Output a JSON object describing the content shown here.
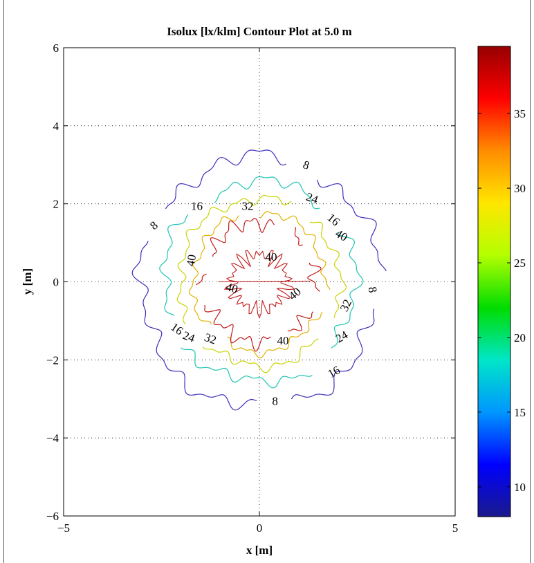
{
  "chart_data": {
    "type": "contour",
    "title": "Isolux [lx/klm] Contour Plot at 5.0 m",
    "xlabel": "x [m]",
    "ylabel": "y [m]",
    "xlim": [
      -5,
      5
    ],
    "ylim": [
      -6,
      6
    ],
    "xticks": [
      -5,
      0,
      5
    ],
    "yticks": [
      -6,
      -4,
      -2,
      0,
      2,
      4,
      6
    ],
    "xtick_labels": [
      "−5",
      "0",
      "5"
    ],
    "ytick_labels": [
      "−6",
      "−4",
      "−2",
      "0",
      "2",
      "4",
      "6"
    ],
    "grid": "dotted",
    "levels": [
      {
        "value": 8,
        "color": "#3a2db8",
        "radius": 3.05
      },
      {
        "value": 16,
        "color": "#1cc4b2",
        "radius": 2.45
      },
      {
        "value": 24,
        "color": "#c8d400",
        "radius": 2.05
      },
      {
        "value": 32,
        "color": "#e1b000",
        "radius": 1.7
      },
      {
        "value": 40,
        "color": "#c01818",
        "radius": 1.45
      }
    ],
    "contour_labels": [
      {
        "text": "8",
        "x": 1.2,
        "y": 3.0,
        "rotate": 20
      },
      {
        "text": "8",
        "x": -2.7,
        "y": 1.45,
        "rotate": -40
      },
      {
        "text": "8",
        "x": 2.9,
        "y": -0.2,
        "rotate": 80
      },
      {
        "text": "8",
        "x": 0.4,
        "y": -3.05,
        "rotate": 0
      },
      {
        "text": "16",
        "x": -1.6,
        "y": 1.95,
        "rotate": 0
      },
      {
        "text": "16",
        "x": 1.9,
        "y": 1.6,
        "rotate": 40
      },
      {
        "text": "16",
        "x": -2.1,
        "y": -1.2,
        "rotate": 35
      },
      {
        "text": "16",
        "x": 1.9,
        "y": -2.3,
        "rotate": -30
      },
      {
        "text": "24",
        "x": 1.35,
        "y": 2.15,
        "rotate": 20
      },
      {
        "text": "24",
        "x": -1.8,
        "y": -1.4,
        "rotate": 20
      },
      {
        "text": "24",
        "x": 2.1,
        "y": -1.4,
        "rotate": -30
      },
      {
        "text": "32",
        "x": -0.3,
        "y": 1.95,
        "rotate": 0
      },
      {
        "text": "32",
        "x": -1.25,
        "y": -1.45,
        "rotate": 20
      },
      {
        "text": "32",
        "x": 2.2,
        "y": -0.6,
        "rotate": -65
      },
      {
        "text": "40",
        "x": 2.1,
        "y": 1.2,
        "rotate": 30
      },
      {
        "text": "40",
        "x": -1.75,
        "y": 0.55,
        "rotate": -80
      },
      {
        "text": "40",
        "x": 0.3,
        "y": 0.65,
        "rotate": 0
      },
      {
        "text": "40",
        "x": -0.7,
        "y": -0.15,
        "rotate": 15
      },
      {
        "text": "40",
        "x": 0.9,
        "y": -0.3,
        "rotate": -40
      },
      {
        "text": "40",
        "x": 0.6,
        "y": -1.5,
        "rotate": 0
      }
    ],
    "colorbar": {
      "min": 8,
      "max": 39.5,
      "ticks": [
        10,
        15,
        20,
        25,
        30,
        35
      ],
      "colormap": [
        "#1a1a8c",
        "#0000ff",
        "#0096ff",
        "#00e6c8",
        "#00dc00",
        "#b4ff00",
        "#ffe600",
        "#ff8c00",
        "#ff0000",
        "#960000"
      ]
    }
  }
}
